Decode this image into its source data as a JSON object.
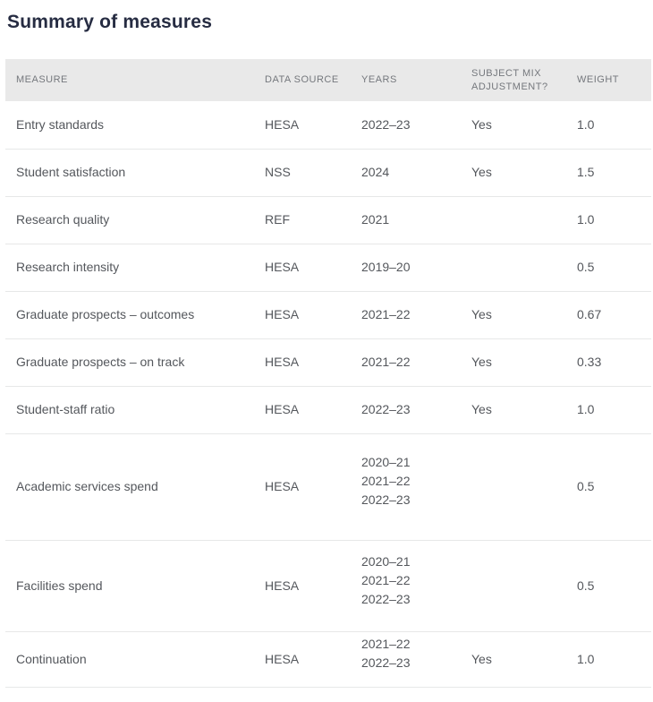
{
  "page": {
    "title": "Summary of measures"
  },
  "colors": {
    "title_text": "#262c42",
    "header_background": "#e9e9e9",
    "header_text": "#75787d",
    "body_text": "#54575c",
    "row_border": "#e7e8e8"
  },
  "table": {
    "columns": [
      {
        "key": "measure",
        "label": "MEASURE"
      },
      {
        "key": "data_source",
        "label": "DATA SOURCE"
      },
      {
        "key": "years",
        "label": "YEARS"
      },
      {
        "key": "subject_mix",
        "label": "SUBJECT MIX ADJUSTMENT?"
      },
      {
        "key": "weight",
        "label": "WEIGHT"
      }
    ],
    "rows": [
      {
        "measure": "Entry standards",
        "data_source": "HESA",
        "years": [
          "2022–23"
        ],
        "subject_mix": "Yes",
        "weight": "1.0"
      },
      {
        "measure": "Student satisfaction",
        "data_source": "NSS",
        "years": [
          "2024"
        ],
        "subject_mix": "Yes",
        "weight": "1.5"
      },
      {
        "measure": "Research quality",
        "data_source": "REF",
        "years": [
          "2021"
        ],
        "subject_mix": "",
        "weight": "1.0"
      },
      {
        "measure": "Research intensity",
        "data_source": "HESA",
        "years": [
          "2019–20"
        ],
        "subject_mix": "",
        "weight": "0.5"
      },
      {
        "measure": "Graduate prospects – outcomes",
        "data_source": "HESA",
        "years": [
          "2021–22"
        ],
        "subject_mix": "Yes",
        "weight": "0.67"
      },
      {
        "measure": "Graduate prospects – on track",
        "data_source": "HESA",
        "years": [
          "2021–22"
        ],
        "subject_mix": "Yes",
        "weight": "0.33"
      },
      {
        "measure": "Student-staff ratio",
        "data_source": "HESA",
        "years": [
          "2022–23"
        ],
        "subject_mix": "Yes",
        "weight": "1.0"
      },
      {
        "measure": "Academic services spend",
        "data_source": "HESA",
        "years": [
          "2020–21",
          "2021–22",
          "2022–23"
        ],
        "subject_mix": "",
        "weight": "0.5"
      },
      {
        "measure": "Facilities spend",
        "data_source": "HESA",
        "years": [
          "2020–21",
          "2021–22",
          "2022–23"
        ],
        "subject_mix": "",
        "weight": "0.5"
      },
      {
        "measure": "Continuation",
        "data_source": "HESA",
        "years": [
          "2021–22",
          "2022–23"
        ],
        "subject_mix": "Yes",
        "weight": "1.0"
      }
    ]
  }
}
